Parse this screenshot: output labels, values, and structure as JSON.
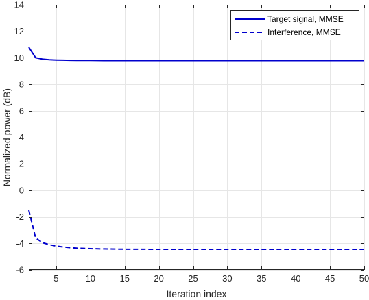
{
  "chart_data": {
    "type": "line",
    "xlabel": "Iteration index",
    "ylabel": "Normalized power (dB)",
    "xlim": [
      1,
      50
    ],
    "ylim": [
      -6,
      14
    ],
    "xticks": [
      5,
      10,
      15,
      20,
      25,
      30,
      35,
      40,
      45,
      50
    ],
    "yticks": [
      -6,
      -4,
      -2,
      0,
      2,
      4,
      6,
      8,
      10,
      12,
      14
    ],
    "grid": true,
    "legend_position": "top-right",
    "series": [
      {
        "name": "Target signal, MMSE",
        "color": "#0000cd",
        "line_style": "solid",
        "x": [
          1,
          2,
          3,
          4,
          5,
          6,
          7,
          8,
          9,
          10,
          12,
          15,
          20,
          25,
          30,
          35,
          40,
          45,
          50
        ],
        "y": [
          10.8,
          10.0,
          9.9,
          9.85,
          9.83,
          9.82,
          9.81,
          9.8,
          9.8,
          9.8,
          9.79,
          9.79,
          9.79,
          9.79,
          9.79,
          9.79,
          9.79,
          9.79,
          9.79
        ]
      },
      {
        "name": "Interference, MMSE",
        "color": "#0000cd",
        "line_style": "dashed",
        "x": [
          1,
          2,
          3,
          4,
          5,
          6,
          7,
          8,
          9,
          10,
          12,
          15,
          20,
          25,
          30,
          35,
          40,
          45,
          50
        ],
        "y": [
          -1.5,
          -3.6,
          -3.95,
          -4.1,
          -4.2,
          -4.27,
          -4.32,
          -4.36,
          -4.38,
          -4.4,
          -4.42,
          -4.44,
          -4.45,
          -4.45,
          -4.45,
          -4.45,
          -4.45,
          -4.45,
          -4.45
        ]
      }
    ]
  }
}
